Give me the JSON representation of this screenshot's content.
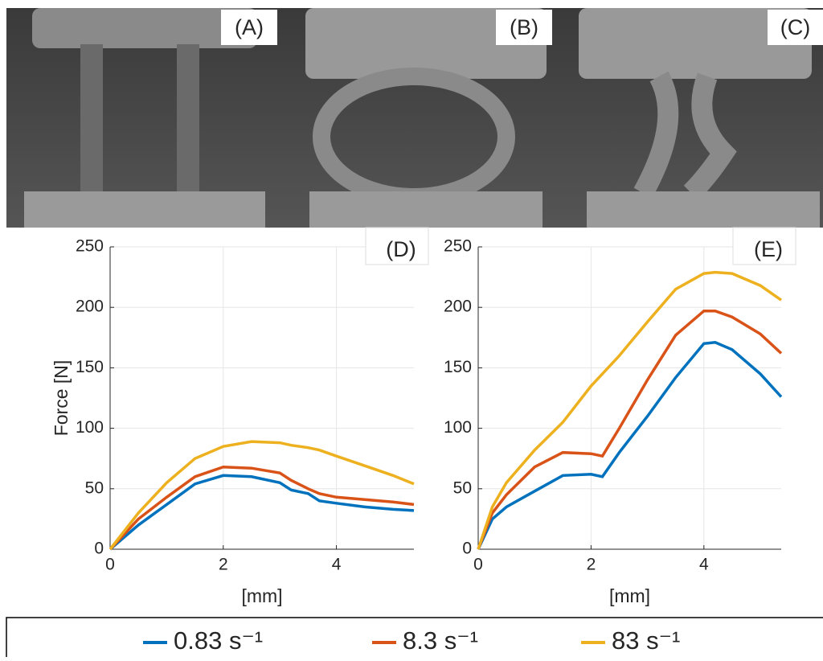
{
  "photos": [
    {
      "label": "(A)"
    },
    {
      "label": "(B)"
    },
    {
      "label": "(C)"
    }
  ],
  "chart_data": [
    {
      "type": "line",
      "label": "(D)",
      "y_label": "Force [N]",
      "x_label": "[mm]",
      "x": [
        0,
        0.5,
        1,
        1.5,
        2,
        2.5,
        3,
        3.2,
        3.5,
        3.7,
        4,
        4.5,
        5,
        5.37
      ],
      "series": [
        {
          "name": "0.83 s⁻¹",
          "color": "#0072bd",
          "values": [
            0,
            20,
            37,
            54,
            61,
            60,
            55,
            49,
            46,
            40,
            38,
            35,
            33,
            32
          ]
        },
        {
          "name": "8.3 s⁻¹",
          "color": "#d95319",
          "values": [
            0,
            25,
            43,
            60,
            68,
            67,
            63,
            57,
            50,
            46,
            43,
            41,
            39,
            37
          ]
        },
        {
          "name": "83 s⁻¹",
          "color": "#edb120",
          "values": [
            0,
            30,
            55,
            75,
            85,
            89,
            88,
            86,
            84,
            82,
            77,
            69,
            61,
            54
          ]
        }
      ],
      "xlim": [
        0,
        5.37
      ],
      "ylim": [
        0,
        250
      ],
      "xticks": [
        0,
        2,
        4
      ],
      "yticks": [
        0,
        50,
        100,
        150,
        200,
        250
      ],
      "grid": true
    },
    {
      "type": "line",
      "label": "(E)",
      "x_label": "[mm]",
      "x": [
        0,
        0.25,
        0.5,
        1,
        1.5,
        2,
        2.2,
        2.5,
        3,
        3.5,
        4,
        4.2,
        4.5,
        5,
        5.37
      ],
      "series": [
        {
          "name": "0.83 s⁻¹",
          "color": "#0072bd",
          "values": [
            0,
            25,
            35,
            48,
            61,
            62,
            60,
            80,
            110,
            142,
            170,
            171,
            165,
            145,
            126
          ]
        },
        {
          "name": "8.3 s⁻¹",
          "color": "#d95319",
          "values": [
            0,
            30,
            45,
            68,
            80,
            79,
            77,
            100,
            140,
            177,
            197,
            197,
            192,
            178,
            162
          ]
        },
        {
          "name": "83 s⁻¹",
          "color": "#edb120",
          "values": [
            0,
            35,
            55,
            82,
            105,
            135,
            145,
            160,
            188,
            215,
            228,
            229,
            228,
            218,
            206
          ]
        }
      ],
      "xlim": [
        0,
        5.37
      ],
      "ylim": [
        0,
        250
      ],
      "xticks": [
        0,
        2,
        4
      ],
      "yticks": [
        0,
        50,
        100,
        150,
        200,
        250
      ],
      "grid": true
    }
  ]
}
